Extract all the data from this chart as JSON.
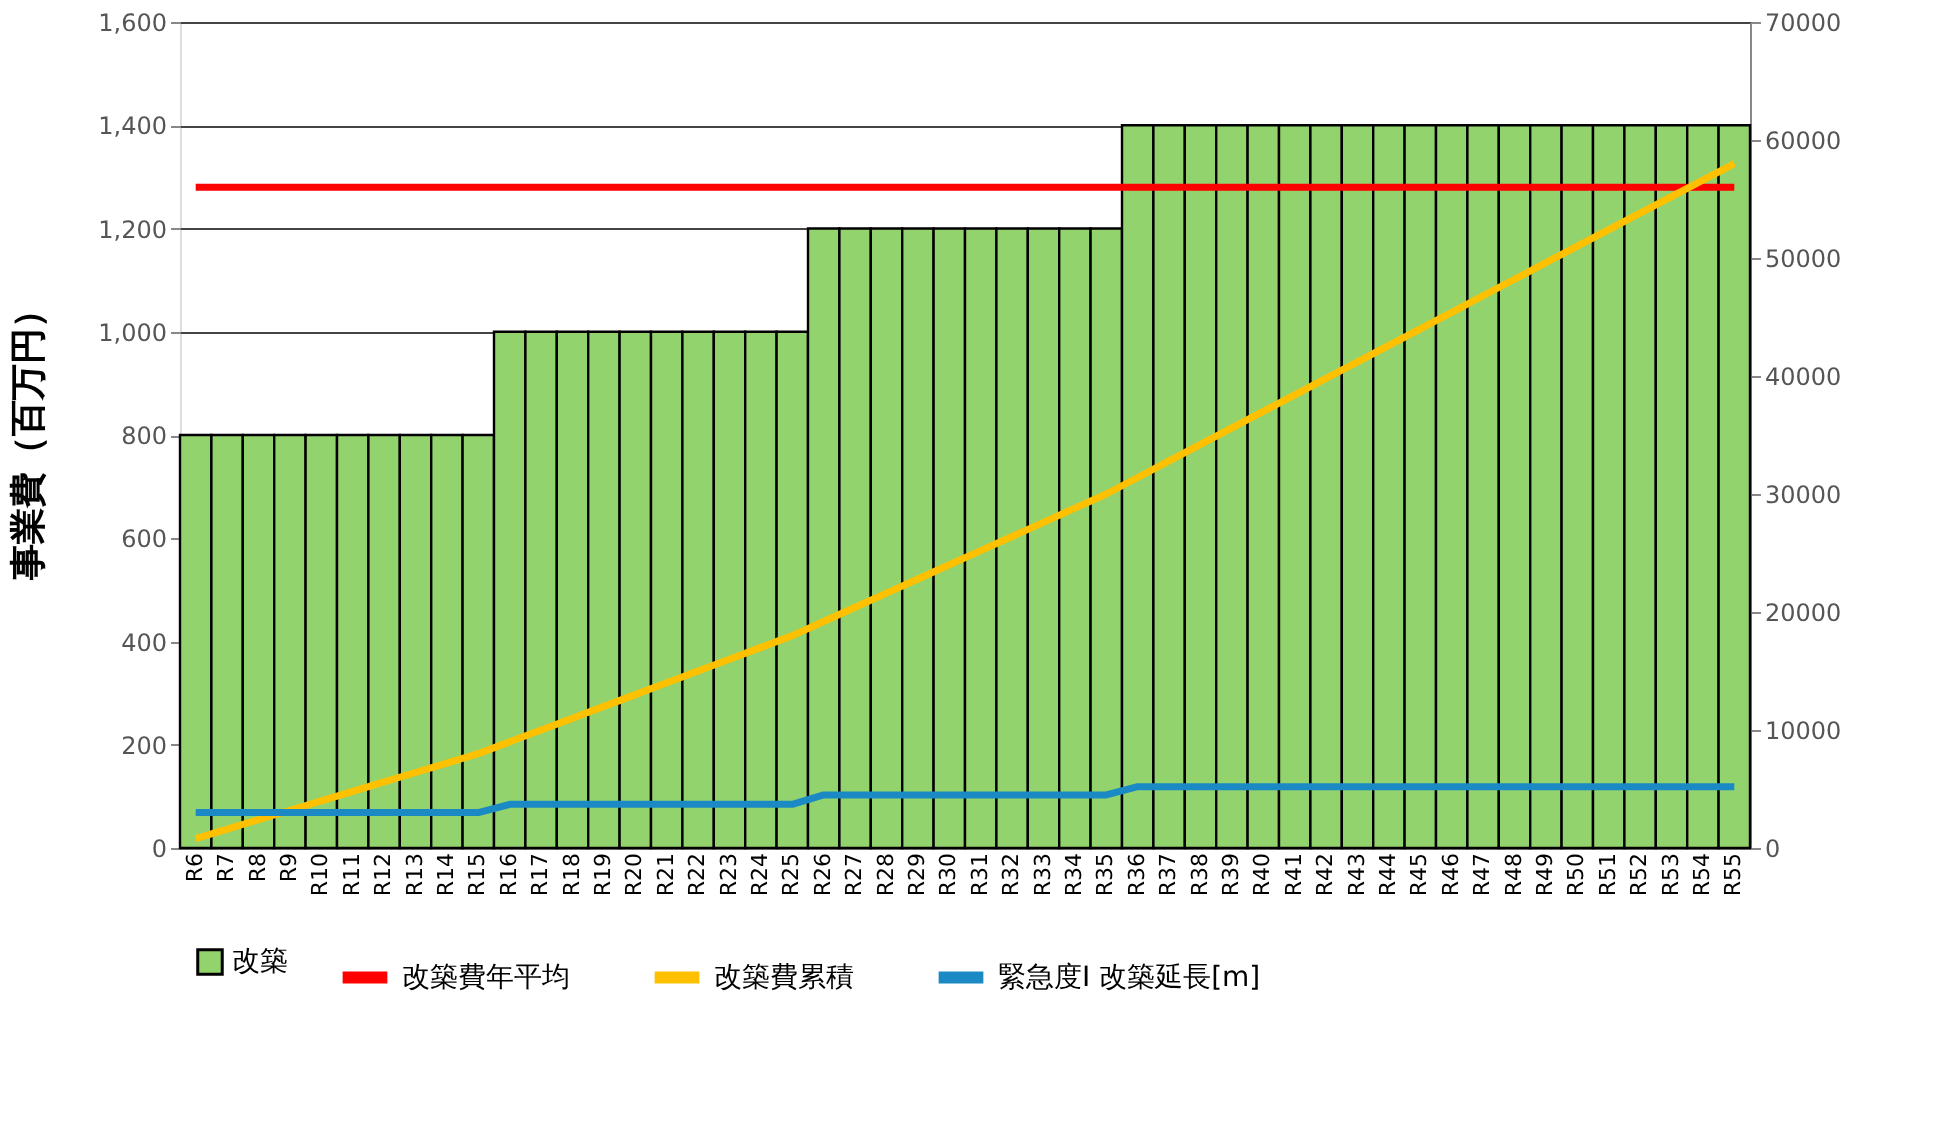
{
  "chart_data": {
    "type": "bar",
    "categories": [
      "R6",
      "R7",
      "R8",
      "R9",
      "R10",
      "R11",
      "R12",
      "R13",
      "R14",
      "R15",
      "R16",
      "R17",
      "R18",
      "R19",
      "R20",
      "R21",
      "R22",
      "R23",
      "R24",
      "R25",
      "R26",
      "R27",
      "R28",
      "R29",
      "R30",
      "R31",
      "R32",
      "R33",
      "R34",
      "R35",
      "R36",
      "R37",
      "R38",
      "R39",
      "R40",
      "R41",
      "R42",
      "R43",
      "R44",
      "R45",
      "R46",
      "R47",
      "R48",
      "R49",
      "R50",
      "R51",
      "R52",
      "R53",
      "R54",
      "R55"
    ],
    "series": [
      {
        "name": "改築",
        "color": "#92d36e",
        "values": [
          800,
          800,
          800,
          800,
          800,
          800,
          800,
          800,
          800,
          800,
          1000,
          1000,
          1000,
          1000,
          1000,
          1000,
          1000,
          1000,
          1000,
          1000,
          1200,
          1200,
          1200,
          1200,
          1200,
          1200,
          1200,
          1200,
          1200,
          1200,
          1400,
          1400,
          1400,
          1400,
          1400,
          1400,
          1400,
          1400,
          1400,
          1400,
          1400,
          1400,
          1400,
          1400,
          1400,
          1400,
          1400,
          1400,
          1400,
          1400
        ]
      },
      {
        "name": "改築費年平均",
        "type": "line",
        "color": "#ff0000",
        "values": [
          1280,
          1280,
          1280,
          1280,
          1280,
          1280,
          1280,
          1280,
          1280,
          1280,
          1280,
          1280,
          1280,
          1280,
          1280,
          1280,
          1280,
          1280,
          1280,
          1280,
          1280,
          1280,
          1280,
          1280,
          1280,
          1280,
          1280,
          1280,
          1280,
          1280,
          1280,
          1280,
          1280,
          1280,
          1280,
          1280,
          1280,
          1280,
          1280,
          1280,
          1280,
          1280,
          1280,
          1280,
          1280,
          1280,
          1280,
          1280,
          1280,
          1280
        ]
      },
      {
        "name": "改築費累積",
        "type": "line",
        "axis": "y2",
        "color": "#ffc000",
        "values": [
          800,
          1600,
          2400,
          3200,
          4000,
          4800,
          5600,
          6400,
          7200,
          8000,
          9000,
          10000,
          11000,
          12000,
          13000,
          14000,
          15000,
          16000,
          17000,
          18000,
          19200,
          20400,
          21600,
          22800,
          24000,
          25200,
          26400,
          27600,
          28800,
          30000,
          31400,
          32800,
          34200,
          35600,
          37000,
          38400,
          39800,
          41200,
          42600,
          44000,
          45400,
          46800,
          48200,
          49600,
          51000,
          52400,
          53800,
          55200,
          56600,
          58000
        ]
      },
      {
        "name": "緊急度Ⅰ 改築延長[m]",
        "type": "line",
        "axis": "y2",
        "color": "#1b8ac4",
        "values": [
          3000,
          3000,
          3000,
          3000,
          3000,
          3000,
          3000,
          3000,
          3000,
          3000,
          3700,
          3700,
          3700,
          3700,
          3700,
          3700,
          3700,
          3700,
          3700,
          3700,
          4500,
          4500,
          4500,
          4500,
          4500,
          4500,
          4500,
          4500,
          4500,
          4500,
          5200,
          5200,
          5200,
          5200,
          5200,
          5200,
          5200,
          5200,
          5200,
          5200,
          5200,
          5200,
          5200,
          5200,
          5200,
          5200,
          5200,
          5200,
          5200,
          5200
        ]
      }
    ],
    "ylabel": "事業費（百万円）",
    "ylim": [
      0,
      1600
    ],
    "yticks": [
      {
        "value": 0,
        "label": "0"
      },
      {
        "value": 200,
        "label": "200"
      },
      {
        "value": 400,
        "label": "400"
      },
      {
        "value": 600,
        "label": "600"
      },
      {
        "value": 800,
        "label": "800"
      },
      {
        "value": 1000,
        "label": "1,000"
      },
      {
        "value": 1200,
        "label": "1,200"
      },
      {
        "value": 1400,
        "label": "1,400"
      },
      {
        "value": 1600,
        "label": "1,600"
      }
    ],
    "y2lim": [
      0,
      70000
    ],
    "y2ticks": [
      0,
      10000,
      20000,
      30000,
      40000,
      50000,
      60000,
      70000
    ],
    "grid": "y",
    "legend": "bottom"
  }
}
